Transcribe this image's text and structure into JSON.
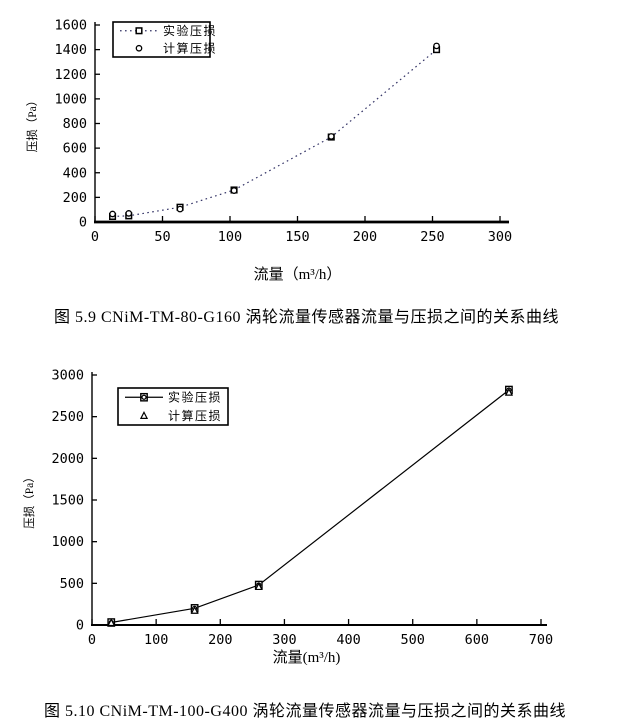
{
  "figure1": {
    "caption": "图 5.9 CNiM-TM-80-G160 涡轮流量传感器流量与压损之间的关系曲线"
  },
  "figure2": {
    "caption": "图 5.10 CNiM-TM-100-G400 涡轮流量传感器流量与压损之间的关系曲线"
  },
  "chart_data": [
    {
      "type": "line",
      "title": "",
      "xlabel": "流量（m³/h）",
      "ylabel": "压损（Pa）",
      "xlim": [
        0,
        300
      ],
      "ylim": [
        0,
        1600
      ],
      "xticks": [
        0,
        50,
        100,
        150,
        200,
        250,
        300
      ],
      "yticks": [
        0,
        200,
        400,
        600,
        800,
        1000,
        1200,
        1400,
        1600
      ],
      "x": [
        13,
        25,
        63,
        103,
        175,
        253
      ],
      "series": [
        {
          "name": "实验压损",
          "marker": "square",
          "line": "dotted",
          "color": "#333366",
          "values": [
            45,
            50,
            120,
            260,
            690,
            1400
          ]
        },
        {
          "name": "计算压损",
          "marker": "circle",
          "line": "none",
          "color": "#000000",
          "values": [
            65,
            70,
            105,
            255,
            695,
            1430
          ]
        }
      ],
      "legend_position": "top-left-inside",
      "grid": false
    },
    {
      "type": "line",
      "title": "",
      "xlabel": "流量(m³/h)",
      "ylabel": "压损（Pa）",
      "xlim": [
        0,
        700
      ],
      "ylim": [
        0,
        3000
      ],
      "xticks": [
        0,
        100,
        200,
        300,
        400,
        500,
        600,
        700
      ],
      "yticks": [
        0,
        500,
        1000,
        1500,
        2000,
        2500,
        3000
      ],
      "x": [
        30,
        160,
        260,
        650
      ],
      "series": [
        {
          "name": "实验压损",
          "marker": "square-circle",
          "line": "solid",
          "color": "#000000",
          "values": [
            30,
            200,
            480,
            2820
          ]
        },
        {
          "name": "计算压损",
          "marker": "triangle",
          "line": "none",
          "color": "#000000",
          "values": [
            25,
            172,
            458,
            2790
          ]
        }
      ],
      "legend_position": "top-left-inside",
      "grid": false
    }
  ]
}
